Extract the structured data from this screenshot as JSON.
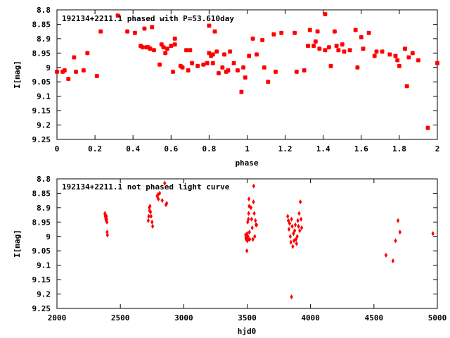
{
  "chart_data": [
    {
      "type": "scatter",
      "title": "192134+2211.1 phased with P=53.610day",
      "xlabel": "phase",
      "ylabel": "I[mag]",
      "xlim": [
        0,
        2
      ],
      "ylim": [
        9.25,
        8.8
      ],
      "y_inverted": true,
      "grid": false,
      "marker_color": "#ff0000",
      "marker": "cross",
      "x_ticks": [
        "0",
        "0.2",
        "0.4",
        "0.6",
        "0.8",
        "1",
        "1.2",
        "1.4",
        "1.6",
        "1.8",
        "2"
      ],
      "y_ticks": [
        "8.8",
        "8.85",
        "8.9",
        "8.95",
        "9",
        "9.05",
        "9.1",
        "9.15",
        "9.2",
        "9.25"
      ],
      "points": [
        [
          0.0,
          9.015
        ],
        [
          0.03,
          9.015
        ],
        [
          0.04,
          9.01
        ],
        [
          0.06,
          9.04
        ],
        [
          0.09,
          8.965
        ],
        [
          0.1,
          9.015
        ],
        [
          0.14,
          9.01
        ],
        [
          0.16,
          8.95
        ],
        [
          0.21,
          9.03
        ],
        [
          0.23,
          8.875
        ],
        [
          0.32,
          8.82
        ],
        [
          0.37,
          8.875
        ],
        [
          0.41,
          8.88
        ],
        [
          0.44,
          8.925
        ],
        [
          0.45,
          8.93
        ],
        [
          0.46,
          8.865
        ],
        [
          0.47,
          8.93
        ],
        [
          0.48,
          8.93
        ],
        [
          0.49,
          8.935
        ],
        [
          0.5,
          8.86
        ],
        [
          0.51,
          8.94
        ],
        [
          0.54,
          8.99
        ],
        [
          0.55,
          8.92
        ],
        [
          0.56,
          8.93
        ],
        [
          0.57,
          8.95
        ],
        [
          0.58,
          8.935
        ],
        [
          0.6,
          8.925
        ],
        [
          0.61,
          9.015
        ],
        [
          0.62,
          8.9
        ],
        [
          0.62,
          8.92
        ],
        [
          0.65,
          8.995
        ],
        [
          0.66,
          9.0
        ],
        [
          0.68,
          8.94
        ],
        [
          0.69,
          9.01
        ],
        [
          0.7,
          8.94
        ],
        [
          0.71,
          8.985
        ],
        [
          0.74,
          8.995
        ],
        [
          0.77,
          8.99
        ],
        [
          0.79,
          8.985
        ],
        [
          0.8,
          8.855
        ],
        [
          0.8,
          8.95
        ],
        [
          0.81,
          8.96
        ],
        [
          0.82,
          8.985
        ],
        [
          0.82,
          8.955
        ],
        [
          0.83,
          8.875
        ],
        [
          0.84,
          8.945
        ],
        [
          0.85,
          9.02
        ],
        [
          0.87,
          9.0
        ],
        [
          0.88,
          8.955
        ],
        [
          0.89,
          9.015
        ],
        [
          0.9,
          9.01
        ],
        [
          0.91,
          8.945
        ],
        [
          0.93,
          8.985
        ],
        [
          0.95,
          9.01
        ],
        [
          0.97,
          9.085
        ],
        [
          0.98,
          9.0
        ],
        [
          0.99,
          9.035
        ],
        [
          1.01,
          8.96
        ],
        [
          1.03,
          8.9
        ],
        [
          1.05,
          8.955
        ],
        [
          1.08,
          8.905
        ],
        [
          1.09,
          9.0
        ],
        [
          1.11,
          9.05
        ],
        [
          1.14,
          8.885
        ],
        [
          1.15,
          9.015
        ],
        [
          1.18,
          8.88
        ],
        [
          1.25,
          8.88
        ],
        [
          1.26,
          9.015
        ],
        [
          1.3,
          9.01
        ],
        [
          1.32,
          8.925
        ],
        [
          1.33,
          8.87
        ],
        [
          1.35,
          8.925
        ],
        [
          1.36,
          8.91
        ],
        [
          1.37,
          8.875
        ],
        [
          1.38,
          8.935
        ],
        [
          1.41,
          8.815
        ],
        [
          1.41,
          8.94
        ],
        [
          1.43,
          8.93
        ],
        [
          1.44,
          8.995
        ],
        [
          1.46,
          8.875
        ],
        [
          1.47,
          8.925
        ],
        [
          1.48,
          8.94
        ],
        [
          1.5,
          8.92
        ],
        [
          1.51,
          8.945
        ],
        [
          1.54,
          8.94
        ],
        [
          1.57,
          8.87
        ],
        [
          1.58,
          9.0
        ],
        [
          1.6,
          8.895
        ],
        [
          1.61,
          8.935
        ],
        [
          1.64,
          8.88
        ],
        [
          1.67,
          8.96
        ],
        [
          1.68,
          8.945
        ],
        [
          1.71,
          8.945
        ],
        [
          1.75,
          8.955
        ],
        [
          1.78,
          8.96
        ],
        [
          1.79,
          8.975
        ],
        [
          1.8,
          8.995
        ],
        [
          1.83,
          8.935
        ],
        [
          1.84,
          9.065
        ],
        [
          1.85,
          8.965
        ],
        [
          1.87,
          8.95
        ],
        [
          1.9,
          8.975
        ],
        [
          1.95,
          9.21
        ],
        [
          2.0,
          8.985
        ]
      ]
    },
    {
      "type": "scatter",
      "title": "192134+2211.1 not phased light curve",
      "xlabel": "hjd0",
      "ylabel": "I[mag]",
      "xlim": [
        2000,
        5000
      ],
      "ylim": [
        9.25,
        8.8
      ],
      "y_inverted": true,
      "grid": false,
      "marker_color": "#ff0000",
      "marker": "diamond",
      "x_ticks": [
        "2000",
        "2500",
        "3000",
        "3500",
        "4000",
        "4500",
        "5000"
      ],
      "y_ticks": [
        "8.8",
        "8.85",
        "8.9",
        "8.95",
        "9",
        "9.05",
        "9.1",
        "9.15",
        "9.2",
        "9.25"
      ],
      "points": [
        [
          2378,
          8.92
        ],
        [
          2380,
          8.925
        ],
        [
          2382,
          8.93
        ],
        [
          2384,
          8.935
        ],
        [
          2386,
          8.94
        ],
        [
          2388,
          8.945
        ],
        [
          2390,
          8.93
        ],
        [
          2392,
          8.94
        ],
        [
          2394,
          8.95
        ],
        [
          2396,
          8.985
        ],
        [
          2398,
          8.995
        ],
        [
          2720,
          8.945
        ],
        [
          2724,
          8.93
        ],
        [
          2728,
          8.9
        ],
        [
          2730,
          8.91
        ],
        [
          2734,
          8.895
        ],
        [
          2738,
          8.915
        ],
        [
          2742,
          8.93
        ],
        [
          2750,
          8.95
        ],
        [
          2755,
          8.965
        ],
        [
          2790,
          8.86
        ],
        [
          2796,
          8.855
        ],
        [
          2800,
          8.87
        ],
        [
          2810,
          8.85
        ],
        [
          2830,
          8.875
        ],
        [
          2850,
          8.815
        ],
        [
          2860,
          8.89
        ],
        [
          2866,
          8.885
        ],
        [
          3488,
          8.995
        ],
        [
          3490,
          9.005
        ],
        [
          3492,
          9.01
        ],
        [
          3494,
          9.0
        ],
        [
          3496,
          9.01
        ],
        [
          3498,
          9.05
        ],
        [
          3500,
          8.99
        ],
        [
          3502,
          9.015
        ],
        [
          3504,
          8.95
        ],
        [
          3506,
          9.0
        ],
        [
          3508,
          9.01
        ],
        [
          3510,
          8.94
        ],
        [
          3512,
          8.92
        ],
        [
          3514,
          8.87
        ],
        [
          3516,
          8.895
        ],
        [
          3518,
          8.985
        ],
        [
          3520,
          9.01
        ],
        [
          3530,
          8.9
        ],
        [
          3535,
          8.94
        ],
        [
          3540,
          8.97
        ],
        [
          3545,
          9.01
        ],
        [
          3550,
          8.88
        ],
        [
          3552,
          8.825
        ],
        [
          3556,
          8.92
        ],
        [
          3560,
          9.0
        ],
        [
          3565,
          8.945
        ],
        [
          3570,
          8.96
        ],
        [
          3575,
          8.96
        ],
        [
          3820,
          8.93
        ],
        [
          3825,
          8.945
        ],
        [
          3830,
          8.975
        ],
        [
          3835,
          8.955
        ],
        [
          3840,
          9.0
        ],
        [
          3845,
          9.02
        ],
        [
          3850,
          8.94
        ],
        [
          3855,
          8.965
        ],
        [
          3860,
          9.035
        ],
        [
          3865,
          8.99
        ],
        [
          3870,
          9.015
        ],
        [
          3875,
          8.98
        ],
        [
          3880,
          8.96
        ],
        [
          3885,
          9.01
        ],
        [
          3890,
          9.025
        ],
        [
          3895,
          9.0
        ],
        [
          3900,
          8.945
        ],
        [
          3905,
          8.965
        ],
        [
          3910,
          8.92
        ],
        [
          3915,
          8.98
        ],
        [
          3920,
          8.88
        ],
        [
          3925,
          8.94
        ],
        [
          3930,
          8.97
        ],
        [
          3850,
          9.21
        ],
        [
          4595,
          9.065
        ],
        [
          4650,
          9.085
        ],
        [
          4670,
          9.015
        ],
        [
          4690,
          8.945
        ],
        [
          4705,
          8.985
        ],
        [
          4965,
          8.99
        ]
      ]
    }
  ]
}
